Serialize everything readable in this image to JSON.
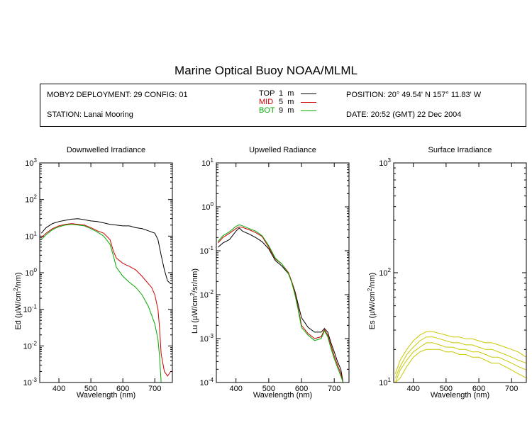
{
  "header": {
    "title": "Marine Optical Buoy NOAA/MLML",
    "deployment": "MOBY2 DEPLOYMENT: 29 CONFIG: 01",
    "station": "STATION: Lanai Mooring",
    "position": "POSITION: 20° 49.54' N   157° 11.83' W",
    "date": "DATE: 20:52 (GMT) 22 Dec 2004"
  },
  "legend": [
    {
      "name": "TOP",
      "depth": "1",
      "unit": "m",
      "color": "#000000"
    },
    {
      "name": "MID",
      "depth": "5",
      "unit": "m",
      "color": "#cc0000"
    },
    {
      "name": "BOT",
      "depth": "9",
      "unit": "m",
      "color": "#00aa00"
    }
  ],
  "chart_data": [
    {
      "type": "line",
      "title": "Downwelled Irradiance",
      "xlabel": "Wavelength (nm)",
      "ylabel": "Ed  (µW/cm²/nm)",
      "ylabel_parts": [
        "Ed  (µW/cm",
        "2",
        "/nm)"
      ],
      "xlim": [
        340,
        755
      ],
      "ylim": [
        0.001,
        1000
      ],
      "yscale": "log",
      "xticks": [
        400,
        500,
        600,
        700
      ],
      "yticks": [
        {
          "value": 0.001,
          "base": "10",
          "exp": "-3"
        },
        {
          "value": 0.01,
          "base": "10",
          "exp": "-2"
        },
        {
          "value": 0.1,
          "base": "10",
          "exp": "-1"
        },
        {
          "value": 1,
          "base": "10",
          "exp": "0"
        },
        {
          "value": 10,
          "base": "10",
          "exp": "1"
        },
        {
          "value": 100,
          "base": "10",
          "exp": "2"
        },
        {
          "value": 1000,
          "base": "10",
          "exp": "3"
        }
      ],
      "series": [
        {
          "name": "TOP",
          "color": "#000000",
          "x": [
            345,
            360,
            380,
            400,
            420,
            440,
            460,
            480,
            500,
            520,
            540,
            560,
            580,
            600,
            620,
            640,
            660,
            680,
            700,
            710,
            720,
            730,
            740,
            750
          ],
          "y": [
            12,
            17,
            22,
            25,
            27,
            29,
            30,
            28,
            26,
            25,
            23,
            21,
            20,
            19,
            19,
            17,
            16,
            14,
            12,
            8,
            3,
            1.2,
            0.6,
            0.5
          ]
        },
        {
          "name": "MID",
          "color": "#cc0000",
          "x": [
            345,
            360,
            380,
            400,
            420,
            440,
            460,
            480,
            500,
            520,
            540,
            560,
            570,
            580,
            600,
            620,
            640,
            660,
            680,
            690,
            700,
            710,
            715,
            720,
            730,
            740,
            750
          ],
          "y": [
            9,
            12,
            16,
            19,
            21,
            22,
            21,
            20,
            17,
            14,
            12,
            8,
            4,
            2.5,
            1.8,
            1.5,
            1.2,
            0.8,
            0.5,
            0.4,
            0.25,
            0.1,
            0.03,
            0.006,
            0.002,
            0.0015,
            0.002
          ]
        },
        {
          "name": "BOT",
          "color": "#00aa00",
          "x": [
            345,
            360,
            380,
            400,
            420,
            440,
            460,
            480,
            500,
            520,
            540,
            560,
            570,
            580,
            600,
            620,
            640,
            660,
            680,
            690,
            700,
            710,
            715,
            720
          ],
          "y": [
            8,
            11,
            15,
            18,
            20,
            21,
            20,
            19,
            16,
            13,
            10,
            6,
            3,
            1.4,
            0.8,
            0.55,
            0.4,
            0.25,
            0.12,
            0.07,
            0.04,
            0.015,
            0.005,
            0.001
          ]
        }
      ]
    },
    {
      "type": "line",
      "title": "Upwelled Radiance",
      "xlabel": "Wavelength (nm)",
      "ylabel": "Lu  (µW/cm²/sr/nm)",
      "ylabel_parts": [
        "Lu  (µW/cm",
        "2",
        "/sr/nm)"
      ],
      "xlim": [
        340,
        745
      ],
      "ylim": [
        0.0001,
        10
      ],
      "yscale": "log",
      "xticks": [
        400,
        500,
        600,
        700
      ],
      "yticks": [
        {
          "value": 0.0001,
          "base": "10",
          "exp": "-4"
        },
        {
          "value": 0.001,
          "base": "10",
          "exp": "-3"
        },
        {
          "value": 0.01,
          "base": "10",
          "exp": "-2"
        },
        {
          "value": 0.1,
          "base": "10",
          "exp": "-1"
        },
        {
          "value": 1,
          "base": "10",
          "exp": "0"
        },
        {
          "value": 10,
          "base": "10",
          "exp": "1"
        }
      ],
      "series": [
        {
          "name": "TOP",
          "color": "#000000",
          "x": [
            345,
            360,
            380,
            400,
            410,
            420,
            440,
            460,
            480,
            500,
            520,
            540,
            560,
            570,
            580,
            590,
            600,
            620,
            640,
            660,
            670,
            680,
            690,
            700,
            710,
            720,
            727
          ],
          "y": [
            0.12,
            0.15,
            0.18,
            0.28,
            0.33,
            0.28,
            0.24,
            0.2,
            0.16,
            0.11,
            0.06,
            0.045,
            0.03,
            0.02,
            0.012,
            0.006,
            0.003,
            0.0018,
            0.0014,
            0.0014,
            0.0017,
            0.0014,
            0.0008,
            0.0005,
            0.0003,
            0.0002,
            0.0001
          ]
        },
        {
          "name": "MID",
          "color": "#cc0000",
          "x": [
            345,
            360,
            380,
            400,
            410,
            420,
            440,
            460,
            480,
            500,
            520,
            540,
            560,
            570,
            580,
            590,
            600,
            620,
            640,
            660,
            670,
            680,
            690,
            700,
            710,
            720,
            727
          ],
          "y": [
            0.15,
            0.2,
            0.25,
            0.32,
            0.35,
            0.34,
            0.3,
            0.26,
            0.21,
            0.12,
            0.065,
            0.05,
            0.032,
            0.02,
            0.011,
            0.005,
            0.002,
            0.0013,
            0.001,
            0.0011,
            0.0016,
            0.0012,
            0.0007,
            0.0004,
            0.00025,
            0.00016,
            0.0001
          ]
        },
        {
          "name": "BOT",
          "color": "#00aa00",
          "x": [
            345,
            360,
            380,
            400,
            410,
            420,
            440,
            460,
            480,
            500,
            520,
            540,
            560,
            570,
            580,
            590,
            600,
            620,
            640,
            660,
            670,
            680,
            690,
            700,
            710,
            720,
            727
          ],
          "y": [
            0.16,
            0.22,
            0.27,
            0.36,
            0.39,
            0.37,
            0.32,
            0.28,
            0.22,
            0.13,
            0.068,
            0.05,
            0.03,
            0.019,
            0.01,
            0.0045,
            0.0018,
            0.0012,
            0.0009,
            0.001,
            0.0015,
            0.0011,
            0.0006,
            0.00035,
            0.00022,
            0.00014,
            0.0001
          ]
        }
      ]
    },
    {
      "type": "line",
      "title": "Surface Irradiance",
      "xlabel": "Wavelength (nm)",
      "ylabel": "Es  (µW/cm²/nm)",
      "ylabel_parts": [
        "Es  (µW/cm",
        "2",
        "/nm)"
      ],
      "xlim": [
        340,
        745
      ],
      "ylim": [
        10,
        1000
      ],
      "yscale": "log",
      "xticks": [
        400,
        500,
        600,
        700
      ],
      "yticks": [
        {
          "value": 10,
          "base": "10",
          "exp": "1"
        },
        {
          "value": 100,
          "base": "10",
          "exp": "2"
        },
        {
          "value": 1000,
          "base": "10",
          "exp": "3"
        }
      ],
      "series": [
        {
          "color": "#c8c800",
          "x": [
            345,
            360,
            380,
            400,
            420,
            440,
            460,
            480,
            500,
            520,
            540,
            560,
            580,
            600,
            620,
            640,
            660,
            680,
            700,
            720,
            745
          ],
          "y": [
            12,
            16,
            20,
            24,
            27,
            29,
            29,
            28,
            27,
            26,
            26,
            25,
            25,
            24,
            23,
            23,
            22,
            21,
            20,
            19,
            17
          ]
        },
        {
          "color": "#c8c800",
          "x": [
            345,
            360,
            380,
            400,
            420,
            440,
            460,
            480,
            500,
            520,
            540,
            560,
            580,
            600,
            620,
            640,
            660,
            680,
            700,
            720,
            745
          ],
          "y": [
            11,
            14,
            18,
            21,
            24,
            26,
            26,
            25,
            24,
            23,
            23,
            22,
            22,
            21,
            20,
            20,
            19,
            18,
            17,
            16,
            15
          ]
        },
        {
          "color": "#c8c800",
          "x": [
            345,
            360,
            380,
            400,
            420,
            440,
            460,
            480,
            500,
            520,
            540,
            560,
            580,
            600,
            620,
            640,
            660,
            680,
            700,
            720,
            745
          ],
          "y": [
            10,
            13,
            16,
            19,
            21,
            23,
            23,
            22,
            21,
            21,
            20,
            20,
            19,
            19,
            18,
            17,
            17,
            16,
            15,
            14,
            13
          ]
        },
        {
          "color": "#c8c800",
          "x": [
            345,
            360,
            380,
            400,
            420,
            440,
            460,
            480,
            500,
            520,
            540,
            560,
            580,
            600,
            620,
            640,
            660,
            680,
            700,
            720,
            745
          ],
          "y": [
            10,
            11,
            14,
            17,
            19,
            20,
            20,
            20,
            19,
            19,
            18,
            18,
            17,
            17,
            16,
            15,
            15,
            14,
            13,
            12,
            11
          ]
        }
      ]
    }
  ]
}
